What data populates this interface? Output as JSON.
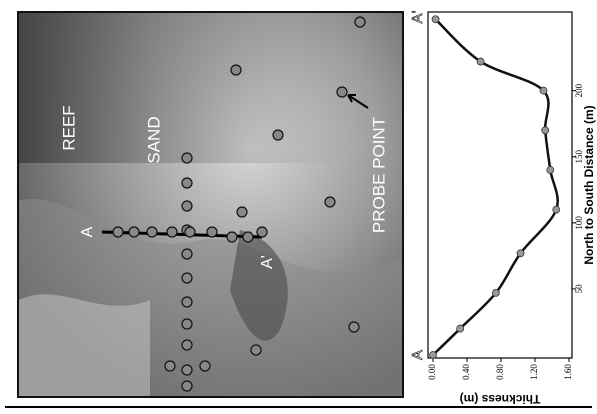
{
  "photo": {
    "labels": [
      "REEF",
      "SAND",
      "A",
      "A'",
      "PROBE POINT"
    ]
  },
  "chart_data": {
    "type": "line",
    "x_label": "North to South Distance (m)",
    "y_label": "Thickness (m)",
    "x": [
      0,
      20,
      47,
      77,
      110,
      140,
      170,
      200,
      222,
      254
    ],
    "values": [
      0,
      0.32,
      0.74,
      1.03,
      1.45,
      1.38,
      1.32,
      1.3,
      0.56,
      0.03
    ],
    "color": "#111111",
    "marker_color": "#999999",
    "xlim": [
      0,
      258
    ],
    "ylim": [
      0,
      1.6
    ],
    "xticks": [
      50,
      100,
      150,
      200
    ],
    "yticks": [
      {
        "value": 0,
        "label": "0.00"
      },
      {
        "value": 0.4,
        "label": "0.40"
      },
      {
        "value": 0.8,
        "label": "0.80"
      },
      {
        "value": 1.2,
        "label": "1.20"
      },
      {
        "value": 1.6,
        "label": "1.60"
      }
    ],
    "annotations": [
      "A",
      "A'"
    ]
  }
}
